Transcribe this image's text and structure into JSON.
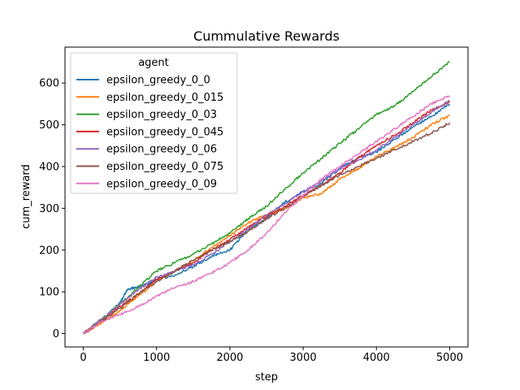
{
  "chart_data": {
    "type": "line",
    "title": "Cummulative Rewards",
    "xlabel": "step",
    "ylabel": "cum_reward",
    "xlim": [
      -250,
      5250
    ],
    "ylim": [
      -32,
      686
    ],
    "xticks": [
      0,
      1000,
      2000,
      3000,
      4000,
      5000
    ],
    "yticks": [
      0,
      100,
      200,
      300,
      400,
      500,
      600
    ],
    "grid": false,
    "legend": {
      "title": "agent",
      "placement": "top-left"
    },
    "series": [
      {
        "name": "epsilon_greedy_0_0",
        "color": "#1f77b4",
        "x": [
          0,
          250,
          500,
          600,
          750,
          900,
          1000,
          1250,
          1500,
          1750,
          2000,
          2250,
          2500,
          2750,
          3000,
          3250,
          3500,
          3750,
          4000,
          4250,
          4500,
          4750,
          5000
        ],
        "y": [
          0,
          30,
          75,
          105,
          112,
          120,
          130,
          140,
          160,
          185,
          200,
          250,
          275,
          315,
          340,
          360,
          395,
          420,
          435,
          465,
          495,
          520,
          550
        ]
      },
      {
        "name": "epsilon_greedy_0_015",
        "color": "#ff7f0e",
        "x": [
          0,
          250,
          500,
          750,
          1000,
          1250,
          1500,
          1750,
          2000,
          2250,
          2500,
          2750,
          3000,
          3250,
          3500,
          3750,
          4000,
          4250,
          4500,
          4750,
          5000
        ],
        "y": [
          0,
          25,
          55,
          90,
          125,
          150,
          175,
          205,
          235,
          265,
          285,
          300,
          325,
          335,
          370,
          395,
          425,
          445,
          470,
          500,
          522
        ]
      },
      {
        "name": "epsilon_greedy_0_03",
        "color": "#2ca02c",
        "x": [
          0,
          250,
          500,
          750,
          1000,
          1250,
          1500,
          1750,
          2000,
          2250,
          2500,
          2750,
          3000,
          3250,
          3500,
          3750,
          4000,
          4250,
          4500,
          4750,
          5000
        ],
        "y": [
          0,
          35,
          70,
          110,
          150,
          170,
          190,
          215,
          240,
          275,
          305,
          345,
          385,
          420,
          455,
          490,
          525,
          545,
          580,
          615,
          652
        ]
      },
      {
        "name": "epsilon_greedy_0_045",
        "color": "#d62728",
        "x": [
          0,
          250,
          500,
          750,
          1000,
          1250,
          1500,
          1750,
          2000,
          2250,
          2500,
          2750,
          3000,
          3250,
          3500,
          3750,
          4000,
          4250,
          4500,
          4750,
          5000
        ],
        "y": [
          0,
          30,
          65,
          95,
          130,
          150,
          170,
          200,
          225,
          255,
          280,
          305,
          330,
          355,
          385,
          420,
          450,
          475,
          505,
          535,
          556
        ]
      },
      {
        "name": "epsilon_greedy_0_06",
        "color": "#9467bd",
        "x": [
          0,
          250,
          500,
          750,
          1000,
          1250,
          1500,
          1750,
          2000,
          2250,
          2500,
          2750,
          3000,
          3250,
          3500,
          3750,
          4000,
          4250,
          4500,
          4750,
          5000
        ],
        "y": [
          0,
          35,
          70,
          105,
          135,
          150,
          165,
          190,
          220,
          250,
          285,
          310,
          340,
          365,
          395,
          415,
          440,
          470,
          500,
          530,
          558
        ]
      },
      {
        "name": "epsilon_greedy_0_075",
        "color": "#8c564b",
        "x": [
          0,
          250,
          500,
          750,
          1000,
          1250,
          1500,
          1750,
          2000,
          2250,
          2500,
          2750,
          3000,
          3250,
          3500,
          3750,
          4000,
          4250,
          4500,
          4750,
          5000
        ],
        "y": [
          0,
          30,
          60,
          95,
          125,
          150,
          175,
          200,
          220,
          245,
          275,
          300,
          330,
          355,
          380,
          400,
          420,
          440,
          460,
          480,
          505
        ]
      },
      {
        "name": "epsilon_greedy_0_09",
        "color": "#e377c2",
        "x": [
          0,
          250,
          500,
          750,
          1000,
          1250,
          1500,
          1750,
          2000,
          2250,
          2500,
          2750,
          3000,
          3250,
          3500,
          3750,
          4000,
          4250,
          4500,
          4750,
          5000
        ],
        "y": [
          0,
          30,
          45,
          65,
          90,
          110,
          125,
          145,
          170,
          200,
          240,
          290,
          330,
          370,
          400,
          430,
          460,
          490,
          520,
          550,
          570
        ]
      }
    ]
  }
}
